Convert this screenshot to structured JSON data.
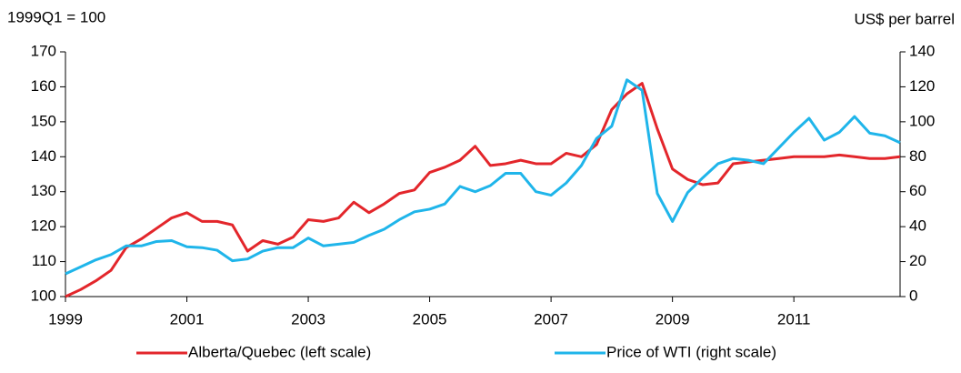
{
  "chart_data": {
    "type": "line",
    "left_axis_label": "1999Q1 = 100",
    "right_axis_label": "US$ per barrel",
    "x": [
      1999,
      1999.25,
      1999.5,
      1999.75,
      2000,
      2000.25,
      2000.5,
      2000.75,
      2001,
      2001.25,
      2001.5,
      2001.75,
      2002,
      2002.25,
      2002.5,
      2002.75,
      2003,
      2003.25,
      2003.5,
      2003.75,
      2004,
      2004.25,
      2004.5,
      2004.75,
      2005,
      2005.25,
      2005.5,
      2005.75,
      2006,
      2006.25,
      2006.5,
      2006.75,
      2007,
      2007.25,
      2007.5,
      2007.75,
      2008,
      2008.25,
      2008.5,
      2008.75,
      2009,
      2009.25,
      2009.5,
      2009.75,
      2010,
      2010.25,
      2010.5,
      2010.75,
      2011,
      2011.25,
      2011.5,
      2011.75,
      2012,
      2012.25,
      2012.5,
      2012.75
    ],
    "series": [
      {
        "name": "Alberta/Quebec (left scale)",
        "color": "#e3262b",
        "axis": "y",
        "values": [
          100,
          102,
          104.5,
          107.5,
          114,
          116.5,
          119.5,
          122.5,
          124,
          121.5,
          121.5,
          120.5,
          113,
          116,
          115,
          117,
          122,
          121.5,
          122.5,
          127,
          124,
          126.5,
          129.5,
          130.5,
          135.5,
          137,
          139,
          143,
          137.5,
          138,
          139,
          138,
          138,
          141,
          140,
          143.5,
          153.5,
          158,
          161,
          148,
          136.5,
          133.5,
          132,
          132.5,
          138,
          138.5,
          139,
          139.5,
          140,
          140,
          140,
          140.5,
          140,
          139.5,
          139.5,
          140
        ]
      },
      {
        "name": "Price of WTI (right scale)",
        "color": "#1fb5ea",
        "axis": "y2",
        "values": [
          13,
          17,
          21,
          24,
          29,
          29,
          31.5,
          32,
          28.5,
          28,
          26.5,
          20.5,
          21.5,
          26,
          28,
          28,
          33.5,
          29,
          30,
          31,
          35,
          38.5,
          44,
          48.5,
          50,
          53,
          63,
          60,
          63.5,
          70.5,
          70.5,
          60,
          58,
          65,
          75,
          90.5,
          97.5,
          124,
          118,
          59,
          43,
          59.5,
          68,
          76,
          79,
          78,
          76,
          85,
          94,
          102,
          89.5,
          94,
          103,
          93.5,
          92,
          88
        ]
      }
    ],
    "xlim": [
      1999,
      2012.75
    ],
    "xticks": [
      1999,
      2001,
      2003,
      2005,
      2007,
      2009,
      2011
    ],
    "ylim": [
      100,
      170
    ],
    "yticks": [
      100,
      110,
      120,
      130,
      140,
      150,
      160,
      170
    ],
    "y2lim": [
      0,
      140
    ],
    "y2ticks": [
      0,
      20,
      40,
      60,
      80,
      100,
      120,
      140
    ],
    "legend": "bottom"
  }
}
